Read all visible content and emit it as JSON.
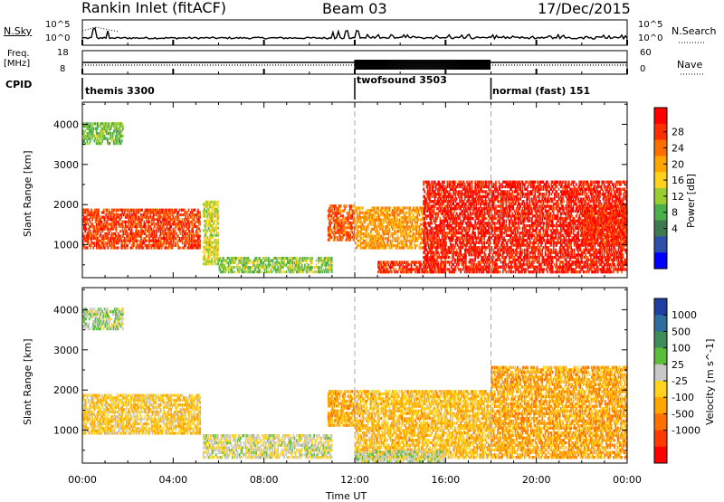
{
  "header": {
    "site": "Rankin Inlet (fitACF)",
    "beam": "Beam 03",
    "date": "17/Dec/2015"
  },
  "strip_nsky": {
    "left_label": "N.Sky",
    "right_label": "N.Search",
    "left_ticks": [
      "10^5",
      "10^0"
    ],
    "right_ticks": [
      "10^5",
      "10^0"
    ]
  },
  "strip_freq": {
    "left_label_1": "Freq.",
    "left_label_2": "[MHz]",
    "left_ticks": [
      "18",
      "8"
    ],
    "right_label": "Nave",
    "right_ticks": [
      "60",
      "0"
    ]
  },
  "cpid": {
    "label": "CPID",
    "modes": [
      {
        "name": "themis 3300",
        "start_h": 0
      },
      {
        "name": "twofsound 3503",
        "start_h": 12
      },
      {
        "name": "normal (fast) 151",
        "start_h": 18
      }
    ]
  },
  "colors": {
    "power": [
      "#0000ff",
      "#2e4fa8",
      "#3e7a4f",
      "#4caf4c",
      "#9acd32",
      "#ffd21f",
      "#ffa500",
      "#ff6f00",
      "#ff3000",
      "#ff0000"
    ],
    "velocity": [
      "#1f3fa0",
      "#2d6e9e",
      "#3e8c5a",
      "#5cbd3a",
      "#c8c8c8",
      "#ffd21f",
      "#ffa500",
      "#ff7000",
      "#ff3a00",
      "#ff0000"
    ]
  },
  "chart_data": [
    {
      "type": "heatmap",
      "quantity": "Power",
      "ylabel": "Slant Range [km]",
      "xlabel": "Time UT",
      "xlim": [
        0,
        24
      ],
      "ylim": [
        180,
        4550
      ],
      "x_ticks": [
        "00:00",
        "04:00",
        "08:00",
        "12:00",
        "16:00",
        "20:00",
        "00:00"
      ],
      "y_ticks": [
        1000,
        2000,
        3000,
        4000
      ],
      "colorbar": {
        "label": "Power [dB]",
        "ticks": [
          "28",
          "24",
          "20",
          "16",
          "12",
          "8",
          "4"
        ],
        "range": [
          0,
          30
        ]
      },
      "mode_boundaries_h": [
        12,
        18
      ],
      "echo_regions": [
        {
          "t0": 0.0,
          "t1": 5.2,
          "r0": 900,
          "r1": 1900,
          "value": 25
        },
        {
          "t0": 0.0,
          "t1": 1.8,
          "r0": 3500,
          "r1": 4050,
          "value": 12
        },
        {
          "t0": 5.3,
          "t1": 6.0,
          "r0": 500,
          "r1": 2100,
          "value": 15
        },
        {
          "t0": 6.0,
          "t1": 11.0,
          "r0": 300,
          "r1": 700,
          "value": 13
        },
        {
          "t0": 10.8,
          "t1": 12.0,
          "r0": 1100,
          "r1": 2000,
          "value": 24
        },
        {
          "t0": 12.0,
          "t1": 15.0,
          "r0": 900,
          "r1": 1950,
          "value": 20
        },
        {
          "t0": 13.0,
          "t1": 16.0,
          "r0": 300,
          "r1": 600,
          "value": 26
        },
        {
          "t0": 15.0,
          "t1": 24.0,
          "r0": 300,
          "r1": 2600,
          "value": 27
        },
        {
          "t0": 22.0,
          "t1": 24.0,
          "r0": 1000,
          "r1": 2000,
          "value": 26
        }
      ]
    },
    {
      "type": "heatmap",
      "quantity": "Velocity",
      "ylabel": "Slant Range [km]",
      "xlabel": "Time UT",
      "xlim": [
        0,
        24
      ],
      "ylim": [
        180,
        4550
      ],
      "x_ticks": [
        "00:00",
        "04:00",
        "08:00",
        "12:00",
        "16:00",
        "20:00",
        "00:00"
      ],
      "y_ticks": [
        1000,
        2000,
        3000,
        4000
      ],
      "colorbar": {
        "label": "Velocity [m s^-1]",
        "ticks": [
          "1000",
          "500",
          "100",
          "25",
          "-25",
          "-100",
          "-500",
          "-1000"
        ],
        "range": [
          -1000,
          1000
        ]
      },
      "mode_boundaries_h": [
        12,
        18
      ],
      "echo_regions": [
        {
          "t0": 0.0,
          "t1": 5.2,
          "r0": 900,
          "r1": 1900,
          "value": -150
        },
        {
          "t0": 0.0,
          "t1": 1.8,
          "r0": 3500,
          "r1": 4050,
          "value": 150
        },
        {
          "t0": 5.3,
          "t1": 11.0,
          "r0": 300,
          "r1": 900,
          "value": 50
        },
        {
          "t0": 10.8,
          "t1": 12.0,
          "r0": 1100,
          "r1": 2000,
          "value": -300
        },
        {
          "t0": 12.0,
          "t1": 18.0,
          "r0": 300,
          "r1": 2000,
          "value": -200
        },
        {
          "t0": 18.0,
          "t1": 24.0,
          "r0": 300,
          "r1": 2600,
          "value": -300
        },
        {
          "t0": 12.0,
          "t1": 16.0,
          "r0": 200,
          "r1": 500,
          "value": 100
        }
      ]
    }
  ]
}
